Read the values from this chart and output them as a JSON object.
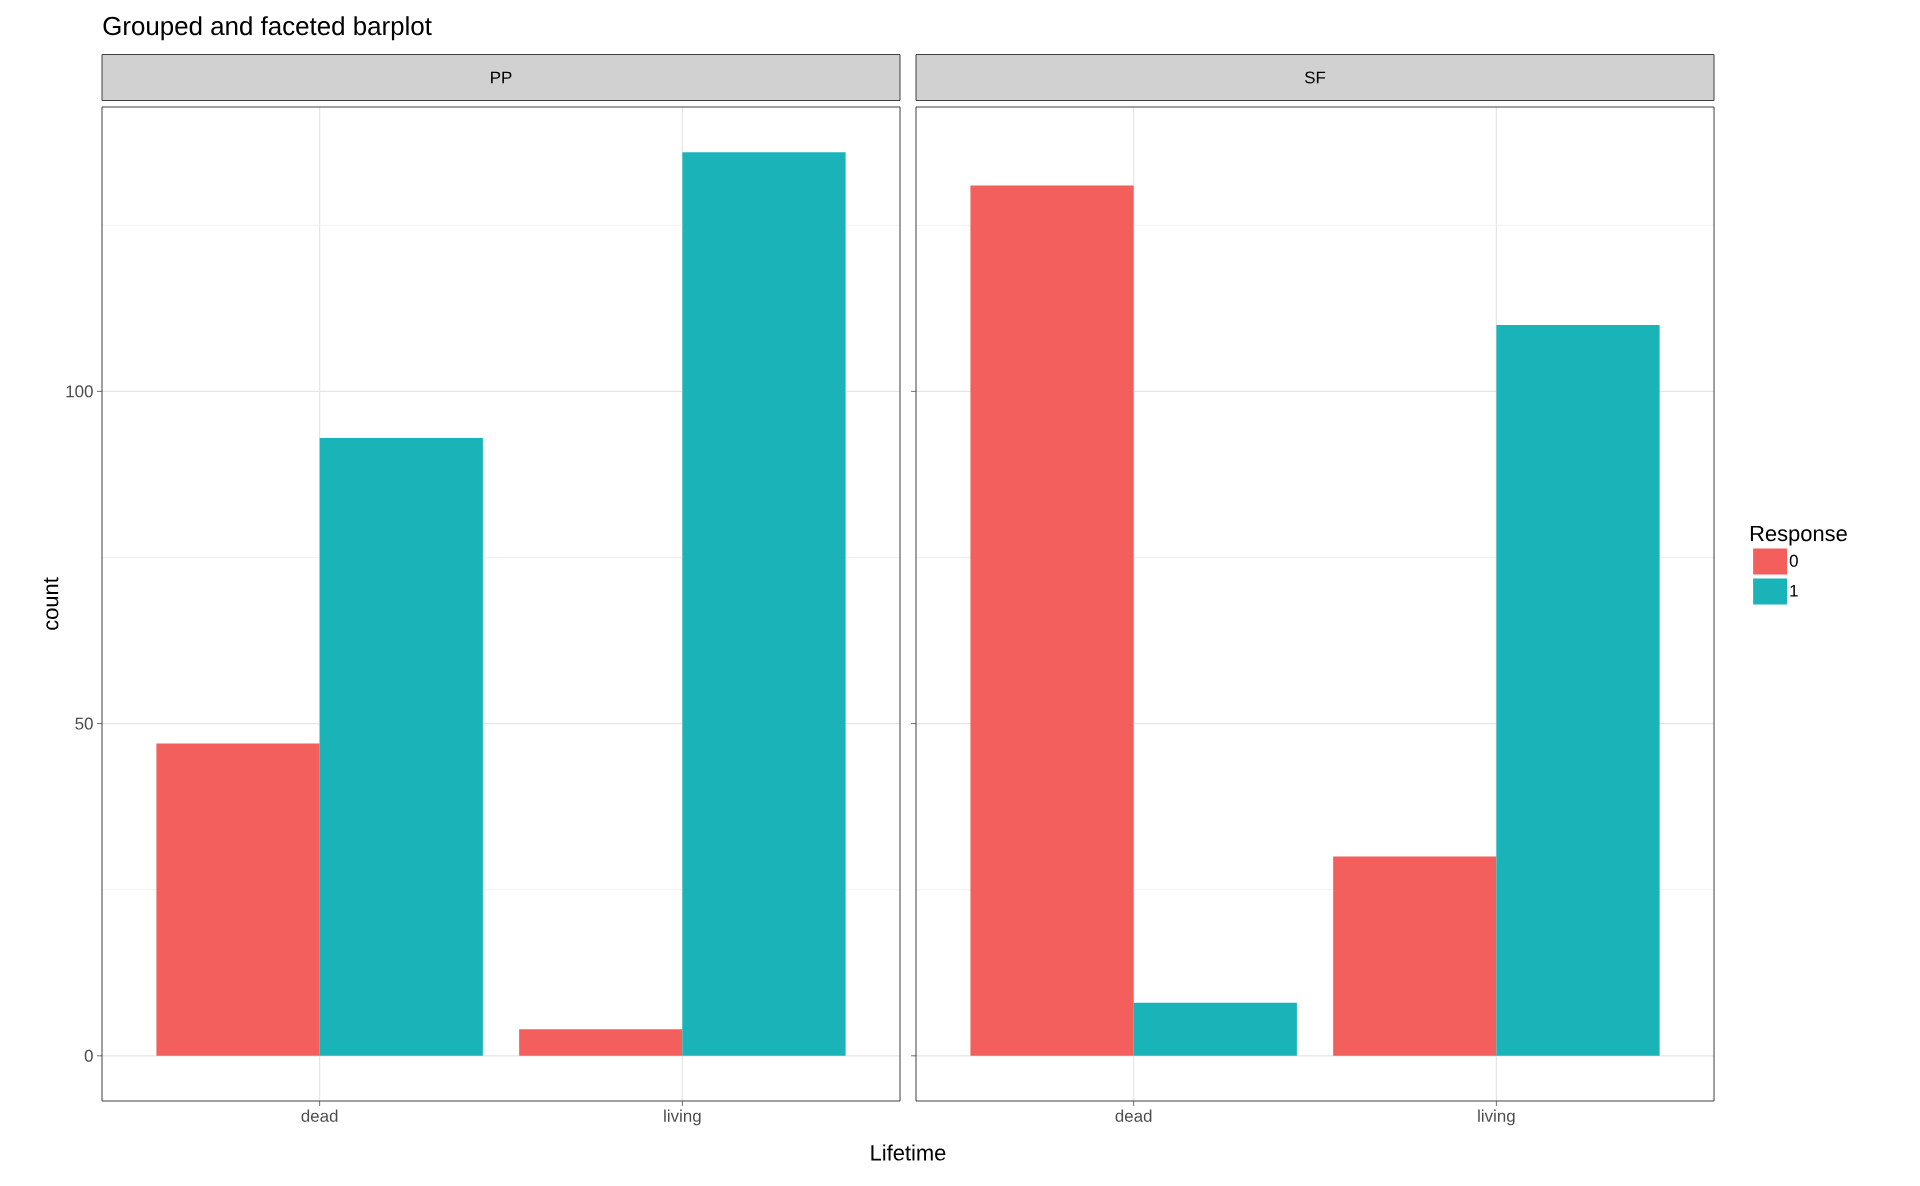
{
  "chart_data": [
    {
      "type": "bar",
      "title": "Grouped and faceted barplot",
      "subtitle": "PP",
      "xlabel": "Lifetime",
      "ylabel": "count",
      "categories": [
        "dead",
        "living"
      ],
      "series": [
        {
          "color": "#f25f5c",
          "values": [
            47,
            4
          ]
        },
        {
          "color": "#19b3b8",
          "values": [
            93,
            136
          ]
        }
      ],
      "ylim": [
        -6.8,
        142.8
      ],
      "yticks": [
        0,
        {
          "value": 25,
          "label": null
        },
        50,
        {
          "value": 75,
          "label": null
        },
        100,
        {
          "value": 125,
          "label": null
        }
      ],
      "grid": true
    },
    {
      "type": "bar",
      "subtitle": "SF",
      "legend_title": "Response",
      "legend": "right",
      "tick_labels": "x",
      "categories": [
        "dead",
        "living"
      ],
      "series": [
        {
          "name": "0",
          "color": "#f25f5c",
          "values": [
            131,
            30
          ]
        },
        {
          "name": "1",
          "color": "#19b3b8",
          "values": [
            8,
            110
          ]
        }
      ],
      "ylim": [
        -6.8,
        142.8
      ],
      "yticks": [
        0,
        {
          "value": 25,
          "label": null
        },
        50,
        {
          "value": 75,
          "label": null
        },
        100,
        {
          "value": 125,
          "label": null
        }
      ],
      "grid": true
    }
  ]
}
